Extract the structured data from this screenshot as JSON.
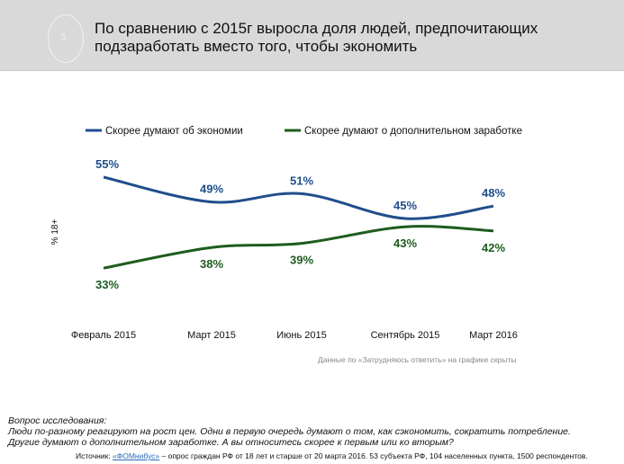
{
  "header": {
    "slide_number": "5",
    "title_line1": "По сравнению с 2015г выросла доля людей, предпочитающих",
    "title_line2": "подзаработать вместо того, чтобы экономить"
  },
  "chart_data": {
    "type": "line",
    "ylabel": "% 18+",
    "categories": [
      "Февраль 2015",
      "Март 2015",
      "Июнь 2015",
      "Сентябрь 2015",
      "Март 2016"
    ],
    "series": [
      {
        "name": "Скорее думают об экономии",
        "color": "#1f4e8c",
        "values": [
          55,
          49,
          51,
          45,
          48
        ],
        "labels": [
          "55%",
          "49%",
          "51%",
          "45%",
          "48%"
        ]
      },
      {
        "name": "Скорее думают о дополнительном заработке",
        "color": "#1e5c1e",
        "values": [
          33,
          38,
          39,
          43,
          42
        ],
        "labels": [
          "33%",
          "38%",
          "39%",
          "43%",
          "42%"
        ]
      }
    ],
    "ylim": [
      30,
      58
    ],
    "legend": "top",
    "grid": false
  },
  "note": "Данные по «Затрудняюсь ответить» на графике скрыты",
  "question": {
    "heading": "Вопрос исследования:",
    "line1": "Люди по-разному реагируют на рост цен. Одни в первую очередь думают о том, как сэкономить, сократить потребление.",
    "line2": "Другие думают о дополнительном заработке. А вы относитесь скорее к первым или ко вторым?"
  },
  "source": {
    "prefix": "Источник: ",
    "link": "«ФОМнибус»",
    "text": " – опрос граждан РФ от 18 лет и старше от 20 марта 2016. 53 субъекта РФ, 104 населенных пункта, 1500 респондентов."
  }
}
